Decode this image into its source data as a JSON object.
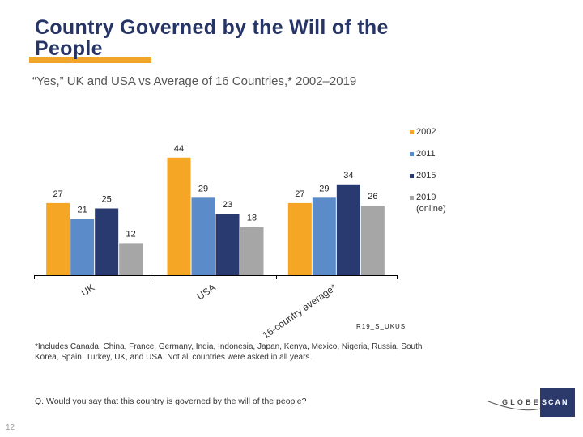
{
  "slide": {
    "title": "Country Governed by the Will of the People",
    "subtitle": "“Yes,” UK and USA vs Average of 16 Countries,* 2002–2019",
    "footnote": "*Includes Canada, China, France, Germany, India, Indonesia, Japan, Kenya, Mexico, Nigeria, Russia, South Korea, Spain, Turkey, UK, and USA. Not all countries were asked in all years.",
    "question": "Q. Would you say that this country is governed by the will of the people?",
    "page_number": "12",
    "source_code": "R19_S_UKUS",
    "logo": {
      "part1": "GLOBE",
      "part2": "SCAN",
      "box_color": "#2B3A6B"
    }
  },
  "colors": {
    "title": "#263566",
    "accent_underline": "#F2A52B"
  },
  "chart_data": {
    "type": "bar",
    "title": "",
    "xlabel": "",
    "ylabel": "",
    "categories": [
      "UK",
      "USA",
      "16-country average*"
    ],
    "series": [
      {
        "name": "2002",
        "note": "",
        "color": "#F4A624",
        "values": [
          27,
          44,
          27
        ]
      },
      {
        "name": "2011",
        "note": "",
        "color": "#5B8BC9",
        "values": [
          21,
          29,
          29
        ]
      },
      {
        "name": "2015",
        "note": "",
        "color": "#293A70",
        "values": [
          25,
          23,
          34
        ]
      },
      {
        "name": "2019",
        "note": "(online)",
        "color": "#A6A6A6",
        "values": [
          12,
          18,
          26
        ]
      }
    ],
    "ylim": [
      0,
      50
    ],
    "grid": false,
    "y_axis_visible": false,
    "data_labels": true,
    "legend_position": "right"
  }
}
